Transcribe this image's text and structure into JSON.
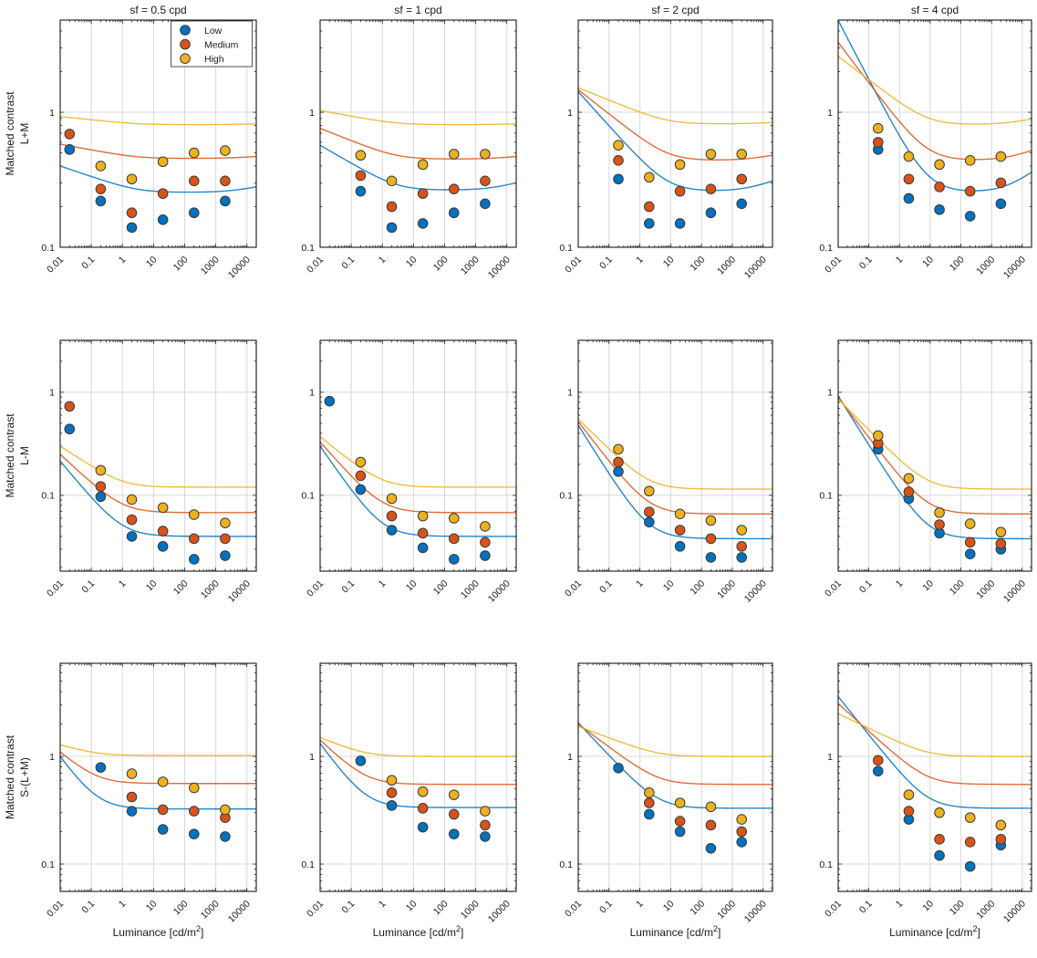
{
  "figure": {
    "col_titles": [
      "sf = 0.5 cpd",
      "sf = 1 cpd",
      "sf = 2 cpd",
      "sf = 4 cpd"
    ],
    "row_labels": [
      [
        "Matched contrast",
        "L+M"
      ],
      [
        "Matched contrast",
        "L-M"
      ],
      [
        "Matched contrast",
        "S-(L+M)"
      ]
    ],
    "xlabel": {
      "text": "Luminance [cd/m",
      "sup": "2",
      "suffix": "]"
    },
    "x_tick_labels": [
      "0.01",
      "0.1",
      "1",
      "10",
      "100",
      "1000",
      "10000"
    ],
    "y_tick_labels": [
      "0.1",
      "1"
    ]
  },
  "legend": {
    "items": [
      {
        "label": "Low",
        "color": "#0072BD"
      },
      {
        "label": "Medium",
        "color": "#D95319"
      },
      {
        "label": "High",
        "color": "#EDB120"
      }
    ]
  },
  "chart_data": {
    "type": "scatter",
    "x_scale": "log",
    "y_scale": "log",
    "xlabel": "Luminance [cd/m2]",
    "xlim": [
      0.01,
      20000
    ],
    "row_ylims": [
      [
        0.1,
        4.82
      ],
      [
        0.0184,
        3.19
      ],
      [
        0.0557,
        7.33
      ]
    ],
    "x_ticks": [
      0.01,
      0.1,
      1,
      10,
      100,
      1000,
      10000
    ],
    "y_ticks": [
      0.1,
      1
    ],
    "series": [
      "Low",
      "Medium",
      "High"
    ],
    "colors": {
      "Low": "#0072BD",
      "Medium": "#D95319",
      "High": "#EDB120"
    },
    "marker_edge": "#3a3a3a",
    "grid_color": "#d8d8d8",
    "subplots": [
      {
        "row": 0,
        "col": 0,
        "sf": "sf = 0.5 cpd",
        "channel": "L+M",
        "x": [
          0.02,
          0.2,
          2,
          20,
          200,
          2000
        ],
        "points": {
          "Low": [
            0.53,
            0.22,
            0.14,
            0.16,
            0.18,
            0.22
          ],
          "Medium": [
            0.69,
            0.27,
            0.18,
            0.25,
            0.31,
            0.31
          ],
          "High": [
            null,
            0.4,
            0.32,
            0.43,
            0.5,
            0.52
          ]
        },
        "curves": {
          "Low": {
            "y0": 0.4,
            "yinf": 0.255,
            "yend": 0.28,
            "knee": 3
          },
          "Medium": {
            "y0": 0.58,
            "yinf": 0.455,
            "yend": 0.47,
            "knee": 3
          },
          "High": {
            "y0": 0.93,
            "yinf": 0.81,
            "yend": 0.82,
            "knee": 3
          }
        }
      },
      {
        "row": 0,
        "col": 1,
        "sf": "sf = 1 cpd",
        "channel": "L+M",
        "x": [
          0.2,
          2,
          20,
          200,
          2000
        ],
        "points": {
          "Low": [
            0.26,
            0.14,
            0.15,
            0.18,
            0.21
          ],
          "Medium": [
            0.34,
            0.2,
            0.25,
            0.27,
            0.31
          ],
          "High": [
            0.48,
            0.31,
            0.41,
            0.49,
            0.49
          ]
        },
        "curves": {
          "Low": {
            "y0": 0.57,
            "yinf": 0.265,
            "yend": 0.3,
            "knee": 3
          },
          "Medium": {
            "y0": 0.76,
            "yinf": 0.45,
            "yend": 0.47,
            "knee": 3
          },
          "High": {
            "y0": 1.03,
            "yinf": 0.81,
            "yend": 0.82,
            "knee": 3
          }
        }
      },
      {
        "row": 0,
        "col": 2,
        "sf": "sf = 2 cpd",
        "channel": "L+M",
        "x": [
          0.2,
          2,
          20,
          200,
          2000
        ],
        "points": {
          "Low": [
            0.32,
            0.15,
            0.15,
            0.18,
            0.21
          ],
          "Medium": [
            0.44,
            0.2,
            0.26,
            0.27,
            0.32
          ],
          "High": [
            0.57,
            0.33,
            0.41,
            0.49,
            0.49
          ]
        },
        "curves": {
          "Low": {
            "y0": 1.42,
            "yinf": 0.26,
            "yend": 0.31,
            "knee": 8
          },
          "Medium": {
            "y0": 1.47,
            "yinf": 0.44,
            "yend": 0.48,
            "knee": 8
          },
          "High": {
            "y0": 1.52,
            "yinf": 0.82,
            "yend": 0.84,
            "knee": 8
          }
        }
      },
      {
        "row": 0,
        "col": 3,
        "sf": "sf = 4 cpd",
        "channel": "L+M",
        "x": [
          0.2,
          2,
          20,
          200,
          2000
        ],
        "points": {
          "Low": [
            0.53,
            0.23,
            0.19,
            0.17,
            0.21
          ],
          "Medium": [
            0.6,
            0.32,
            0.28,
            0.26,
            0.3
          ],
          "High": [
            0.76,
            0.47,
            0.41,
            0.44,
            0.47
          ]
        },
        "curves": {
          "Low": {
            "y0": 4.8,
            "yinf": 0.255,
            "yend": 0.36,
            "knee": 8
          },
          "Medium": {
            "y0": 3.3,
            "yinf": 0.44,
            "yend": 0.52,
            "knee": 8
          },
          "High": {
            "y0": 2.6,
            "yinf": 0.81,
            "yend": 0.89,
            "knee": 8
          }
        }
      },
      {
        "row": 1,
        "col": 0,
        "sf": "sf = 0.5 cpd",
        "channel": "L-M",
        "x": [
          0.02,
          0.2,
          2,
          20,
          200,
          2000
        ],
        "points": {
          "Low": [
            0.44,
            0.097,
            0.04,
            0.032,
            0.024,
            0.026
          ],
          "Medium": [
            0.73,
            0.122,
            0.058,
            0.045,
            0.038,
            0.038
          ],
          "High": [
            null,
            0.175,
            0.091,
            0.076,
            0.065,
            0.054
          ]
        },
        "curves": {
          "Low": {
            "y0": 0.215,
            "yinf": 0.04,
            "yend": null,
            "knee": 1
          },
          "Medium": {
            "y0": 0.25,
            "yinf": 0.068,
            "yend": null,
            "knee": 1
          },
          "High": {
            "y0": 0.3,
            "yinf": 0.12,
            "yend": null,
            "knee": 1
          }
        }
      },
      {
        "row": 1,
        "col": 1,
        "sf": "sf = 1 cpd",
        "channel": "L-M",
        "x": [
          0.02,
          0.2,
          2,
          20,
          200,
          2000
        ],
        "points": {
          "Low": [
            0.82,
            0.114,
            0.046,
            0.031,
            0.024,
            0.026
          ],
          "Medium": [
            null,
            0.155,
            0.063,
            0.043,
            0.038,
            0.035
          ],
          "High": [
            null,
            0.21,
            0.093,
            0.063,
            0.06,
            0.05
          ]
        },
        "curves": {
          "Low": {
            "y0": 0.3,
            "yinf": 0.04,
            "yend": null,
            "knee": 1
          },
          "Medium": {
            "y0": 0.33,
            "yinf": 0.068,
            "yend": null,
            "knee": 1
          },
          "High": {
            "y0": 0.37,
            "yinf": 0.12,
            "yend": null,
            "knee": 1
          }
        }
      },
      {
        "row": 1,
        "col": 2,
        "sf": "sf = 2 cpd",
        "channel": "L-M",
        "x": [
          0.2,
          2,
          20,
          200,
          2000
        ],
        "points": {
          "Low": [
            0.17,
            0.055,
            0.032,
            0.025,
            0.025
          ],
          "Medium": [
            0.21,
            0.069,
            0.046,
            0.038,
            0.032
          ],
          "High": [
            0.28,
            0.11,
            0.066,
            0.057,
            0.046
          ]
        },
        "curves": {
          "Low": {
            "y0": 0.48,
            "yinf": 0.038,
            "yend": null,
            "knee": 2
          },
          "Medium": {
            "y0": 0.52,
            "yinf": 0.066,
            "yend": null,
            "knee": 2
          },
          "High": {
            "y0": 0.55,
            "yinf": 0.115,
            "yend": null,
            "knee": 2
          }
        }
      },
      {
        "row": 1,
        "col": 3,
        "sf": "sf = 4 cpd",
        "channel": "L-M",
        "x": [
          0.2,
          2,
          20,
          200,
          2000
        ],
        "points": {
          "Low": [
            0.28,
            0.093,
            0.043,
            0.027,
            0.03
          ],
          "Medium": [
            0.32,
            0.108,
            0.052,
            0.035,
            0.034
          ],
          "High": [
            0.38,
            0.146,
            0.068,
            0.053,
            0.044
          ]
        },
        "curves": {
          "Low": {
            "y0": 0.92,
            "yinf": 0.038,
            "yend": null,
            "knee": 8
          },
          "Medium": {
            "y0": 0.89,
            "yinf": 0.066,
            "yend": null,
            "knee": 8
          },
          "High": {
            "y0": 0.86,
            "yinf": 0.115,
            "yend": null,
            "knee": 8
          }
        }
      },
      {
        "row": 2,
        "col": 0,
        "sf": "sf = 0.5 cpd",
        "channel": "S-(L+M)",
        "x": [
          0.2,
          2,
          20,
          200,
          2000
        ],
        "points": {
          "Low": [
            0.79,
            0.31,
            0.21,
            0.19,
            0.18
          ],
          "Medium": [
            null,
            0.42,
            0.32,
            0.31,
            0.27
          ],
          "High": [
            null,
            0.69,
            0.58,
            0.51,
            0.32
          ]
        },
        "curves": {
          "Low": {
            "y0": 1.0,
            "yinf": 0.325,
            "yend": null,
            "knee": 0.15
          },
          "Medium": {
            "y0": 1.1,
            "yinf": 0.56,
            "yend": null,
            "knee": 0.15
          },
          "High": {
            "y0": 1.28,
            "yinf": 1.02,
            "yend": null,
            "knee": 0.15
          }
        }
      },
      {
        "row": 2,
        "col": 1,
        "sf": "sf = 1 cpd",
        "channel": "S-(L+M)",
        "x": [
          0.2,
          2,
          20,
          200,
          2000
        ],
        "points": {
          "Low": [
            0.91,
            0.35,
            0.22,
            0.19,
            0.18
          ],
          "Medium": [
            null,
            0.46,
            0.33,
            0.29,
            0.23
          ],
          "High": [
            null,
            0.6,
            0.47,
            0.44,
            0.31
          ]
        },
        "curves": {
          "Low": {
            "y0": 1.32,
            "yinf": 0.335,
            "yend": null,
            "knee": 0.3
          },
          "Medium": {
            "y0": 1.42,
            "yinf": 0.55,
            "yend": null,
            "knee": 0.3
          },
          "High": {
            "y0": 1.5,
            "yinf": 1.0,
            "yend": null,
            "knee": 0.3
          }
        }
      },
      {
        "row": 2,
        "col": 2,
        "sf": "sf = 2 cpd",
        "channel": "S-(L+M)",
        "x": [
          0.2,
          2,
          20,
          200,
          2000
        ],
        "points": {
          "Low": [
            0.78,
            0.29,
            0.2,
            0.14,
            0.16
          ],
          "Medium": [
            null,
            0.37,
            0.25,
            0.23,
            0.2
          ],
          "High": [
            null,
            0.46,
            0.37,
            0.34,
            0.26
          ]
        },
        "curves": {
          "Low": {
            "y0": 2.05,
            "yinf": 0.33,
            "yend": null,
            "knee": 4
          },
          "Medium": {
            "y0": 2.0,
            "yinf": 0.55,
            "yend": null,
            "knee": 4
          },
          "High": {
            "y0": 1.9,
            "yinf": 1.0,
            "yend": null,
            "knee": 4
          }
        }
      },
      {
        "row": 2,
        "col": 3,
        "sf": "sf = 4 cpd",
        "channel": "S-(L+M)",
        "x": [
          0.2,
          2,
          20,
          200,
          2000
        ],
        "points": {
          "Low": [
            0.73,
            0.26,
            0.12,
            0.095,
            0.15
          ],
          "Medium": [
            0.92,
            0.31,
            0.17,
            0.16,
            0.17
          ],
          "High": [
            null,
            0.44,
            0.3,
            0.27,
            0.23
          ]
        },
        "curves": {
          "Low": {
            "y0": 3.6,
            "yinf": 0.33,
            "yend": null,
            "knee": 8
          },
          "Medium": {
            "y0": 3.1,
            "yinf": 0.55,
            "yend": null,
            "knee": 8
          },
          "High": {
            "y0": 2.5,
            "yinf": 1.0,
            "yend": null,
            "knee": 8
          }
        }
      }
    ]
  }
}
